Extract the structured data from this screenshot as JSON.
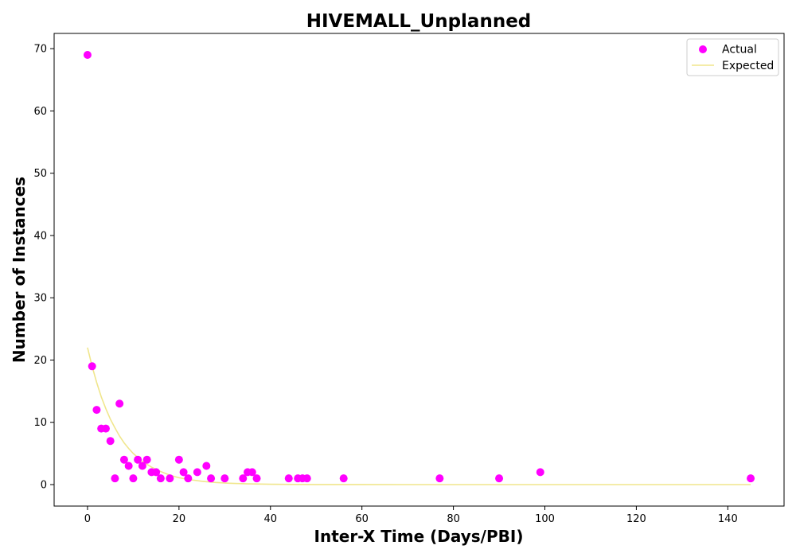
{
  "chart_data": {
    "type": "scatter",
    "title": "HIVEMALL_Unplanned",
    "xlabel": "Inter-X Time (Days/PBI)",
    "ylabel": "Number of Instances",
    "xlim": [
      -7.3,
      152.3
    ],
    "ylim": [
      -3.45,
      72.45
    ],
    "xticks": [
      0,
      20,
      40,
      60,
      80,
      100,
      120,
      140
    ],
    "yticks": [
      0,
      10,
      20,
      30,
      40,
      50,
      60,
      70
    ],
    "grid": false,
    "legend_position": "top-right",
    "series": [
      {
        "name": "Actual",
        "kind": "scatter",
        "color": "#ff00ff",
        "points": [
          [
            0,
            69
          ],
          [
            1,
            19
          ],
          [
            2,
            12
          ],
          [
            3,
            9
          ],
          [
            4,
            9
          ],
          [
            5,
            7
          ],
          [
            6,
            1
          ],
          [
            7,
            13
          ],
          [
            8,
            4
          ],
          [
            9,
            3
          ],
          [
            10,
            1
          ],
          [
            11,
            4
          ],
          [
            12,
            3
          ],
          [
            13,
            4
          ],
          [
            14,
            2
          ],
          [
            15,
            2
          ],
          [
            16,
            1
          ],
          [
            18,
            1
          ],
          [
            20,
            4
          ],
          [
            21,
            2
          ],
          [
            22,
            1
          ],
          [
            24,
            2
          ],
          [
            26,
            3
          ],
          [
            27,
            1
          ],
          [
            30,
            1
          ],
          [
            34,
            1
          ],
          [
            35,
            2
          ],
          [
            36,
            2
          ],
          [
            37,
            1
          ],
          [
            44,
            1
          ],
          [
            46,
            1
          ],
          [
            47,
            1
          ],
          [
            48,
            1
          ],
          [
            56,
            1
          ],
          [
            77,
            1
          ],
          [
            90,
            1
          ],
          [
            99,
            2
          ],
          [
            145,
            1
          ]
        ]
      },
      {
        "name": "Expected",
        "kind": "line",
        "color": "#f0e68c",
        "points": [
          [
            0,
            22.0
          ],
          [
            1,
            19.0
          ],
          [
            2,
            16.4
          ],
          [
            3,
            14.1
          ],
          [
            4,
            12.2
          ],
          [
            5,
            10.5
          ],
          [
            6,
            9.1
          ],
          [
            7,
            7.8
          ],
          [
            8,
            6.7
          ],
          [
            9,
            5.8
          ],
          [
            10,
            5.0
          ],
          [
            12,
            3.7
          ],
          [
            14,
            2.8
          ],
          [
            16,
            2.1
          ],
          [
            18,
            1.5
          ],
          [
            20,
            1.1
          ],
          [
            22,
            0.83
          ],
          [
            25,
            0.53
          ],
          [
            28,
            0.34
          ],
          [
            31,
            0.22
          ],
          [
            35,
            0.12
          ],
          [
            40,
            0.06
          ],
          [
            45,
            0.03
          ],
          [
            50,
            0.013
          ],
          [
            60,
            0.003
          ],
          [
            80,
            0.0
          ],
          [
            100,
            0.0
          ],
          [
            120,
            0.0
          ],
          [
            145,
            0.0
          ]
        ]
      }
    ]
  }
}
